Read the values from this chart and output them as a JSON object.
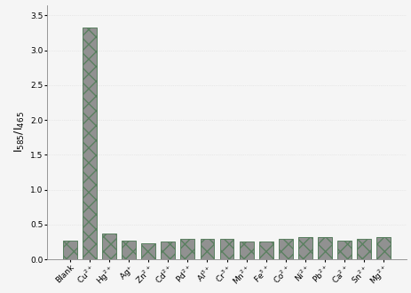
{
  "categories": [
    "Blank",
    "Cu$^{2+}$",
    "Hg$^{2+}$",
    "Ag$^{+}$",
    "Zn$^{2+}$",
    "Cd$^{2+}$",
    "Pd$^{2+}$",
    "Al$^{3+}$",
    "Cr$^{3+}$",
    "Mn$^{2+}$",
    "Fe$^{3+}$",
    "Co$^{2+}$",
    "Ni$^{2+}$",
    "Pb$^{2+}$",
    "Ca$^{2+}$",
    "Sn$^{2+}$",
    "Mg$^{2+}$"
  ],
  "values": [
    0.27,
    3.32,
    0.37,
    0.27,
    0.23,
    0.26,
    0.29,
    0.29,
    0.3,
    0.25,
    0.26,
    0.29,
    0.32,
    0.32,
    0.27,
    0.3,
    0.32
  ],
  "bar_color": "#919191",
  "bar_edge_color": "#5a8060",
  "ylabel": "I$_{585}$/I$_{465}$",
  "ylim": [
    0,
    3.65
  ],
  "yticks": [
    0.0,
    0.5,
    1.0,
    1.5,
    2.0,
    2.5,
    3.0,
    3.5
  ],
  "background_color": "#f5f5f5",
  "plot_bg_color": "#f5f5f5",
  "grid_color": "#d8d8d8",
  "bar_width": 0.72,
  "ylabel_fontsize": 9,
  "tick_fontsize": 6.5,
  "figsize": [
    4.64,
    3.3
  ],
  "dpi": 100
}
